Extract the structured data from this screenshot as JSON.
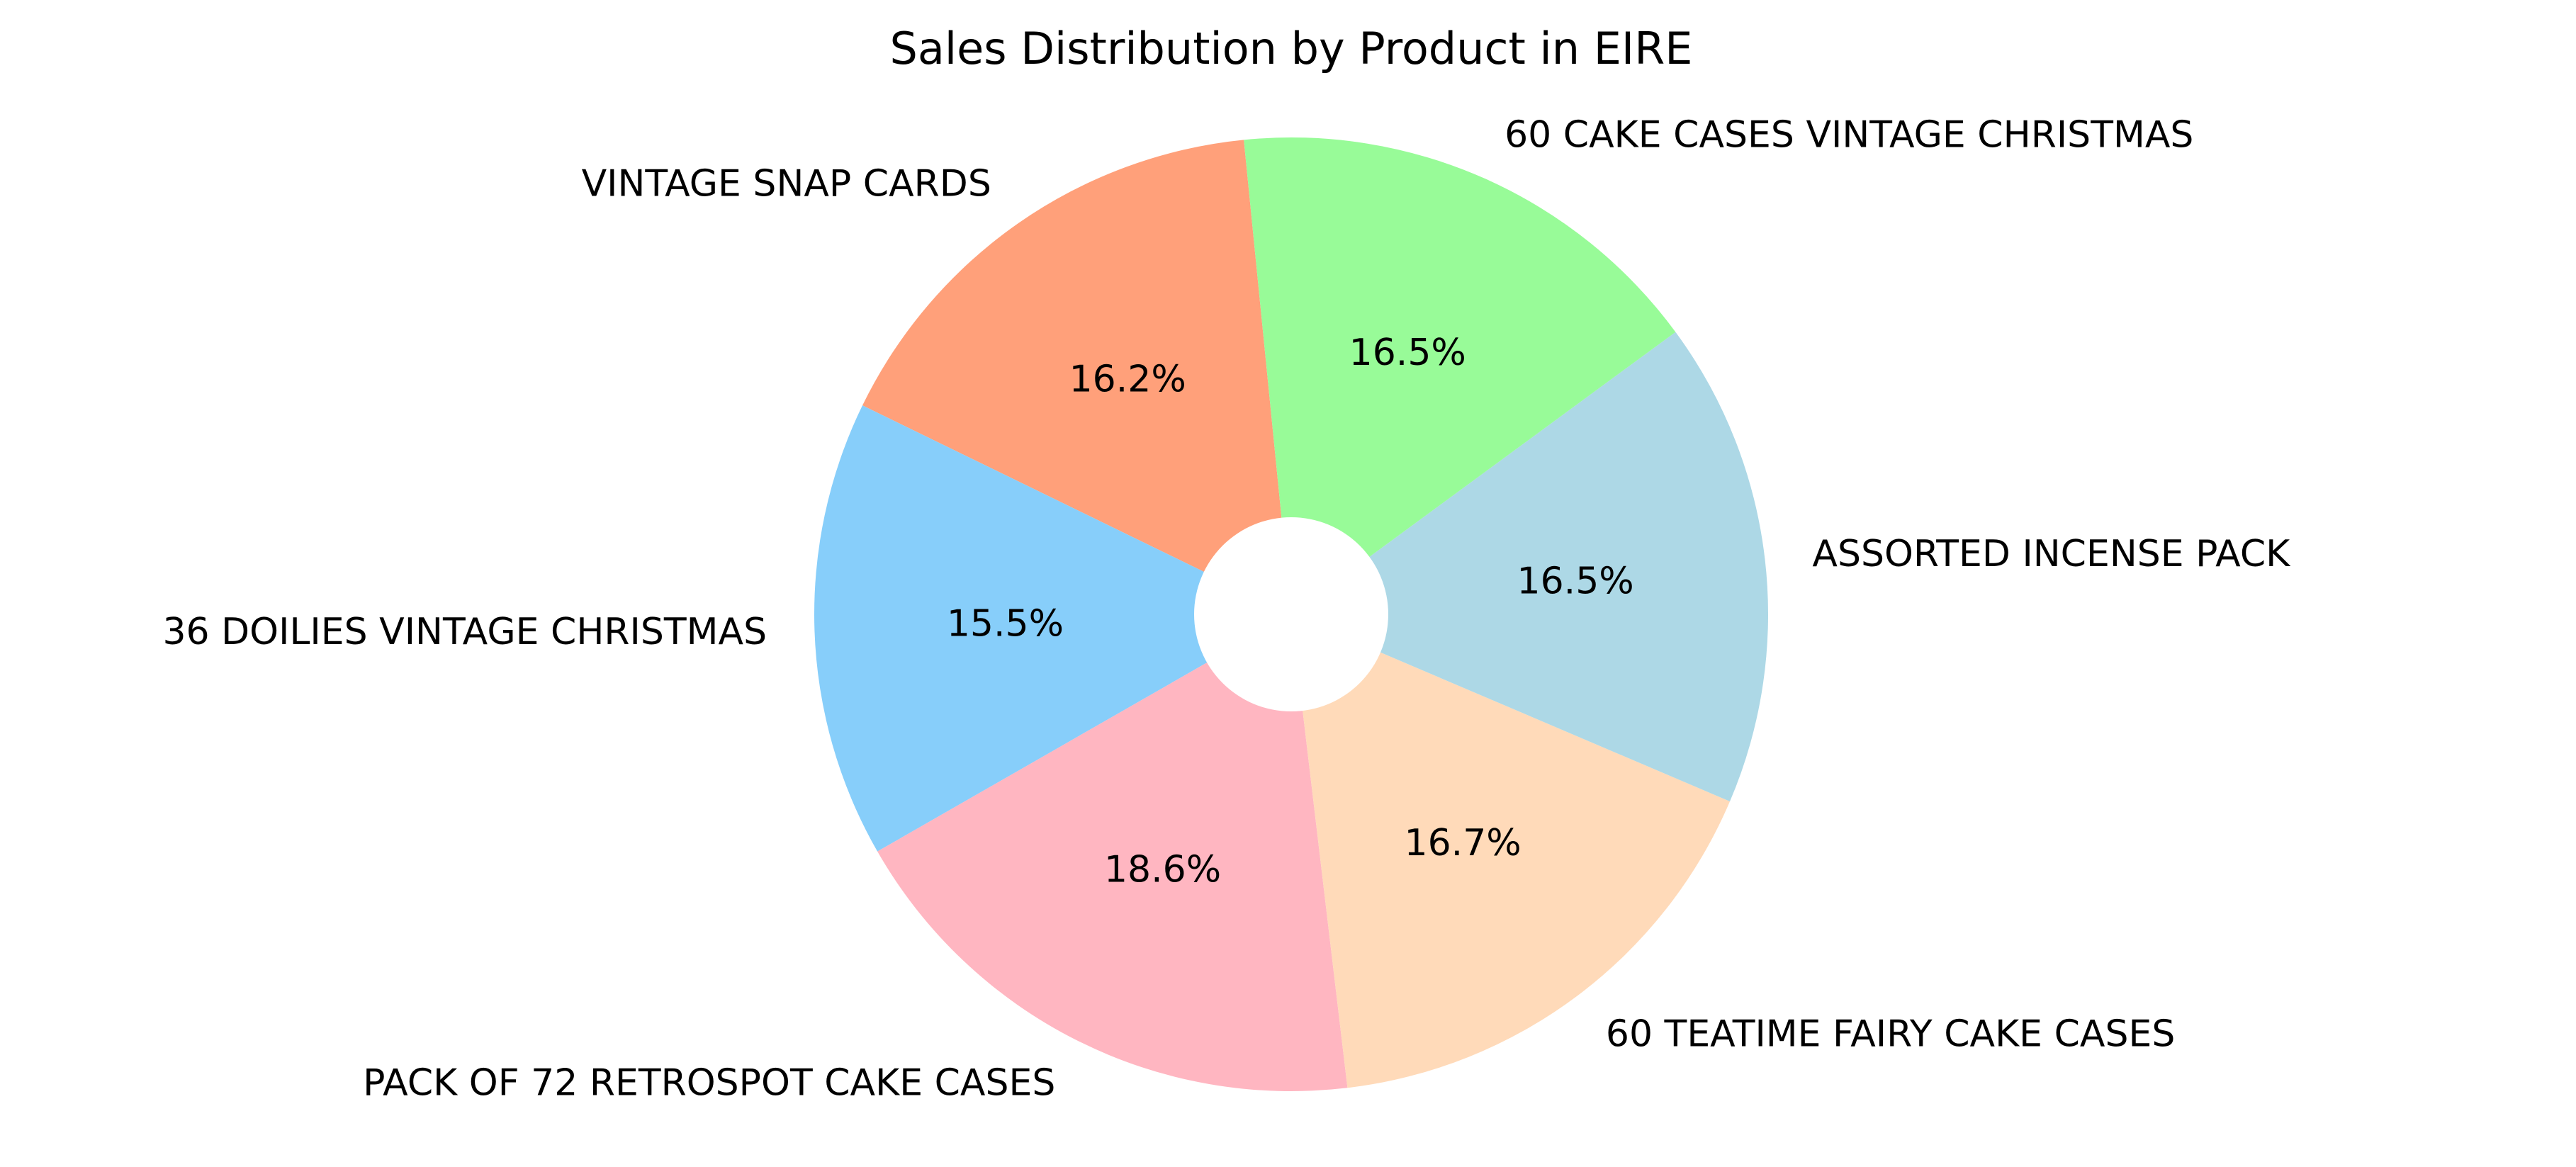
{
  "chart_data": {
    "type": "pie",
    "title": "Sales Distribution by Product in EIRE",
    "categories": [
      "VINTAGE SNAP CARDS",
      "36 DOILIES VINTAGE CHRISTMAS",
      "PACK OF 72 RETROSPOT CAKE CASES",
      "60 TEATIME FAIRY CAKE CASES",
      "ASSORTED INCENSE PACK",
      "60 CAKE CASES VINTAGE CHRISTMAS"
    ],
    "values": [
      16.2,
      15.5,
      18.6,
      16.7,
      16.5,
      16.5
    ],
    "value_labels": [
      "16.2%",
      "15.5%",
      "18.6%",
      "16.7%",
      "16.5%",
      "16.5%"
    ],
    "colors": [
      "#ffa07a",
      "#87cefa",
      "#ffb6c1",
      "#ffdab9",
      "#add8e6",
      "#98fb98"
    ],
    "hole": "white center circle",
    "legend": "none"
  }
}
